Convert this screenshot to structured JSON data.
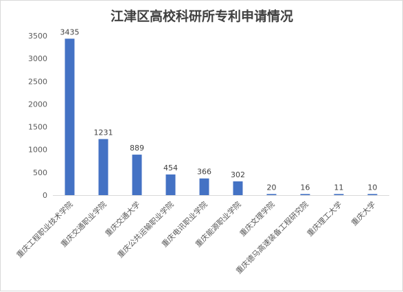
{
  "chart_data": {
    "type": "bar",
    "title": "江津区高校科研所专利申请情况",
    "xlabel": "",
    "ylabel": "",
    "categories": [
      "重庆工程职业技术学院",
      "重庆交通职业学院",
      "重庆交通大学",
      "重庆公共运输职业学院",
      "重庆电讯职业学院",
      "重庆能源职业学院",
      "重庆文理学院",
      "重庆德马高速装备工程研究院",
      "重庆理工大学",
      "重庆大学"
    ],
    "values": [
      3435,
      1231,
      889,
      454,
      366,
      302,
      20,
      16,
      11,
      10
    ],
    "data_labels": [
      "3435",
      "1231",
      "889",
      "454",
      "366",
      "302",
      "20",
      "16",
      "11",
      "10"
    ],
    "ylim": [
      0,
      3500
    ],
    "yticks": [
      "0",
      "500",
      "1000",
      "1500",
      "2000",
      "2500",
      "3000",
      "3500"
    ],
    "grid": false,
    "legend": "none",
    "bar_color": "#4472c4"
  }
}
